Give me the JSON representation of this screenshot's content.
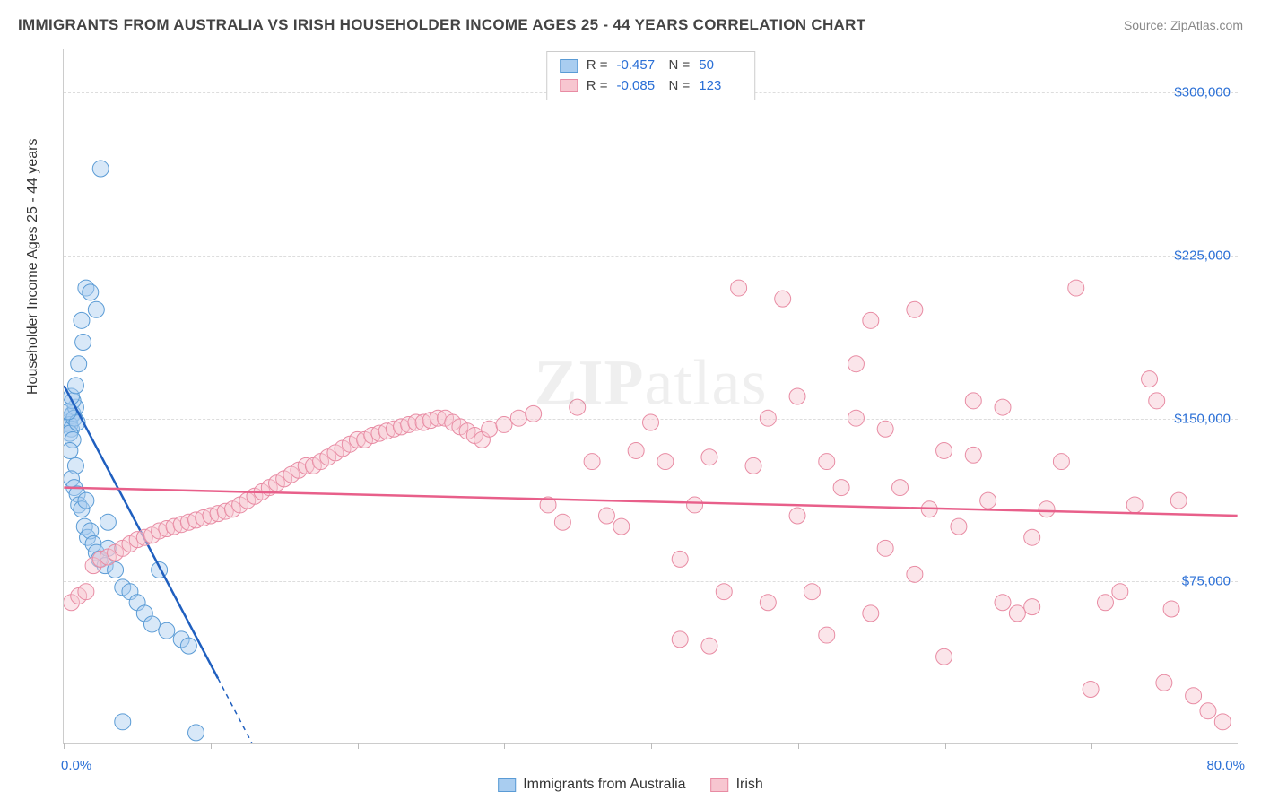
{
  "header": {
    "title": "IMMIGRANTS FROM AUSTRALIA VS IRISH HOUSEHOLDER INCOME AGES 25 - 44 YEARS CORRELATION CHART",
    "source": "Source: ZipAtlas.com"
  },
  "watermark": {
    "bold": "ZIP",
    "light": "atlas"
  },
  "chart": {
    "type": "scatter-with-regression",
    "background_color": "#ffffff",
    "grid_color": "#dddddd",
    "axis_color": "#cccccc",
    "y_axis_title": "Householder Income Ages 25 - 44 years",
    "xlim": [
      0.0,
      80.0
    ],
    "x_unit": "%",
    "x_left_label": "0.0%",
    "x_right_label": "80.0%",
    "x_tick_positions": [
      0,
      10,
      20,
      30,
      40,
      50,
      60,
      70,
      80
    ],
    "ylim": [
      0,
      320000
    ],
    "y_ticks": [
      75000,
      150000,
      225000,
      300000
    ],
    "y_tick_labels": [
      "$75,000",
      "$150,000",
      "$225,000",
      "$300,000"
    ],
    "y_tick_color": "#2a6fd6",
    "x_label_color": "#2a6fd6",
    "marker_radius": 9,
    "marker_opacity": 0.45,
    "series": [
      {
        "id": "australia",
        "label": "Immigrants from Australia",
        "fill_color": "#a9cdf0",
        "stroke_color": "#5a9bd5",
        "regression_color": "#1f5fbf",
        "R": -0.457,
        "N": 50,
        "regression_line": {
          "x1": 0,
          "y1": 165000,
          "x2": 10.5,
          "y2": 30000
        },
        "regression_extrapolate": {
          "x1": 10.5,
          "y1": 30000,
          "x2": 15,
          "y2": -28000
        },
        "points": [
          [
            0.3,
            148000
          ],
          [
            0.5,
            151000
          ],
          [
            0.6,
            152000
          ],
          [
            0.4,
            147000
          ],
          [
            0.8,
            155000
          ],
          [
            0.6,
            158000
          ],
          [
            0.5,
            145000
          ],
          [
            0.4,
            143000
          ],
          [
            0.7,
            150000
          ],
          [
            0.9,
            148000
          ],
          [
            0.3,
            153000
          ],
          [
            0.5,
            160000
          ],
          [
            0.6,
            140000
          ],
          [
            0.4,
            135000
          ],
          [
            0.8,
            128000
          ],
          [
            0.5,
            122000
          ],
          [
            0.7,
            118000
          ],
          [
            0.9,
            115000
          ],
          [
            1.0,
            110000
          ],
          [
            1.2,
            108000
          ],
          [
            1.4,
            100000
          ],
          [
            1.6,
            95000
          ],
          [
            1.8,
            98000
          ],
          [
            2.0,
            92000
          ],
          [
            2.2,
            88000
          ],
          [
            2.4,
            85000
          ],
          [
            1.5,
            112000
          ],
          [
            2.8,
            82000
          ],
          [
            3.0,
            90000
          ],
          [
            3.5,
            80000
          ],
          [
            4.0,
            72000
          ],
          [
            4.5,
            70000
          ],
          [
            5.0,
            65000
          ],
          [
            5.5,
            60000
          ],
          [
            6.0,
            55000
          ],
          [
            6.5,
            80000
          ],
          [
            7.0,
            52000
          ],
          [
            8.0,
            48000
          ],
          [
            8.5,
            45000
          ],
          [
            9.0,
            5000
          ],
          [
            2.5,
            265000
          ],
          [
            1.5,
            210000
          ],
          [
            1.8,
            208000
          ],
          [
            2.2,
            200000
          ],
          [
            1.2,
            195000
          ],
          [
            1.0,
            175000
          ],
          [
            0.8,
            165000
          ],
          [
            3.0,
            102000
          ],
          [
            4.0,
            10000
          ],
          [
            1.3,
            185000
          ]
        ]
      },
      {
        "id": "irish",
        "label": "Irish",
        "fill_color": "#f7c6d0",
        "stroke_color": "#e88ba3",
        "regression_color": "#e85f8a",
        "R": -0.085,
        "N": 123,
        "regression_line": {
          "x1": 0,
          "y1": 118000,
          "x2": 80,
          "y2": 105000
        },
        "points": [
          [
            0.5,
            65000
          ],
          [
            1.0,
            68000
          ],
          [
            1.5,
            70000
          ],
          [
            2.0,
            82000
          ],
          [
            2.5,
            85000
          ],
          [
            3.0,
            86000
          ],
          [
            3.5,
            88000
          ],
          [
            4.0,
            90000
          ],
          [
            4.5,
            92000
          ],
          [
            5.0,
            94000
          ],
          [
            5.5,
            95000
          ],
          [
            6.0,
            96000
          ],
          [
            6.5,
            98000
          ],
          [
            7.0,
            99000
          ],
          [
            7.5,
            100000
          ],
          [
            8.0,
            101000
          ],
          [
            8.5,
            102000
          ],
          [
            9.0,
            103000
          ],
          [
            9.5,
            104000
          ],
          [
            10.0,
            105000
          ],
          [
            10.5,
            106000
          ],
          [
            11.0,
            107000
          ],
          [
            11.5,
            108000
          ],
          [
            12.0,
            110000
          ],
          [
            12.5,
            112000
          ],
          [
            13.0,
            114000
          ],
          [
            13.5,
            116000
          ],
          [
            14.0,
            118000
          ],
          [
            14.5,
            120000
          ],
          [
            15.0,
            122000
          ],
          [
            15.5,
            124000
          ],
          [
            16.0,
            126000
          ],
          [
            16.5,
            128000
          ],
          [
            17.0,
            128000
          ],
          [
            17.5,
            130000
          ],
          [
            18.0,
            132000
          ],
          [
            18.5,
            134000
          ],
          [
            19.0,
            136000
          ],
          [
            19.5,
            138000
          ],
          [
            20.0,
            140000
          ],
          [
            20.5,
            140000
          ],
          [
            21.0,
            142000
          ],
          [
            21.5,
            143000
          ],
          [
            22.0,
            144000
          ],
          [
            22.5,
            145000
          ],
          [
            23.0,
            146000
          ],
          [
            23.5,
            147000
          ],
          [
            24.0,
            148000
          ],
          [
            24.5,
            148000
          ],
          [
            25.0,
            149000
          ],
          [
            25.5,
            150000
          ],
          [
            26.0,
            150000
          ],
          [
            26.5,
            148000
          ],
          [
            27.0,
            146000
          ],
          [
            27.5,
            144000
          ],
          [
            28.0,
            142000
          ],
          [
            28.5,
            140000
          ],
          [
            29.0,
            145000
          ],
          [
            30.0,
            147000
          ],
          [
            31.0,
            150000
          ],
          [
            32.0,
            152000
          ],
          [
            33.0,
            110000
          ],
          [
            34.0,
            102000
          ],
          [
            35.0,
            155000
          ],
          [
            36.0,
            130000
          ],
          [
            37.0,
            105000
          ],
          [
            38.0,
            100000
          ],
          [
            39.0,
            135000
          ],
          [
            40.0,
            148000
          ],
          [
            41.0,
            130000
          ],
          [
            42.0,
            85000
          ],
          [
            43.0,
            110000
          ],
          [
            44.0,
            132000
          ],
          [
            45.0,
            70000
          ],
          [
            46.0,
            210000
          ],
          [
            47.0,
            128000
          ],
          [
            48.0,
            65000
          ],
          [
            49.0,
            205000
          ],
          [
            50.0,
            160000
          ],
          [
            51.0,
            70000
          ],
          [
            52.0,
            130000
          ],
          [
            53.0,
            118000
          ],
          [
            54.0,
            175000
          ],
          [
            55.0,
            60000
          ],
          [
            56.0,
            90000
          ],
          [
            57.0,
            118000
          ],
          [
            58.0,
            200000
          ],
          [
            59.0,
            108000
          ],
          [
            60.0,
            40000
          ],
          [
            61.0,
            100000
          ],
          [
            62.0,
            133000
          ],
          [
            63.0,
            112000
          ],
          [
            64.0,
            65000
          ],
          [
            65.0,
            60000
          ],
          [
            66.0,
            63000
          ],
          [
            67.0,
            108000
          ],
          [
            68.0,
            130000
          ],
          [
            69.0,
            210000
          ],
          [
            70.0,
            25000
          ],
          [
            71.0,
            65000
          ],
          [
            72.0,
            70000
          ],
          [
            73.0,
            110000
          ],
          [
            74.0,
            168000
          ],
          [
            75.0,
            28000
          ],
          [
            76.0,
            112000
          ],
          [
            77.0,
            22000
          ],
          [
            78.0,
            15000
          ],
          [
            79.0,
            10000
          ],
          [
            64.0,
            155000
          ],
          [
            56.0,
            145000
          ],
          [
            60.0,
            135000
          ],
          [
            58.0,
            78000
          ],
          [
            52.0,
            50000
          ],
          [
            50.0,
            105000
          ],
          [
            54.0,
            150000
          ],
          [
            62.0,
            158000
          ],
          [
            66.0,
            95000
          ],
          [
            55.0,
            195000
          ],
          [
            48.0,
            150000
          ],
          [
            44.0,
            45000
          ],
          [
            42.0,
            48000
          ],
          [
            74.5,
            158000
          ],
          [
            75.5,
            62000
          ]
        ]
      }
    ]
  },
  "top_legend": {
    "R_label": "R =",
    "N_label": "N ="
  },
  "bottom_legend_labels": {
    "a": "Immigrants from Australia",
    "b": "Irish"
  }
}
